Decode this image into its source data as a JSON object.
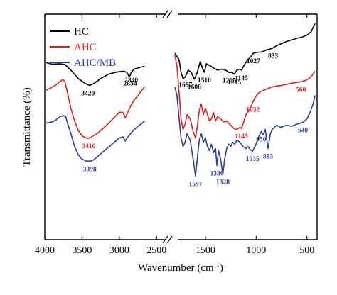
{
  "chart_data": {
    "type": "line",
    "xlabel": "Wavenumber (cm",
    "xlabel_sup": "-1",
    "xlabel_tail": ")",
    "ylabel": "Transmittance (%)",
    "x_reversed": true,
    "x_break": [
      2350,
      1800
    ],
    "xlim": [
      4000,
      400
    ],
    "x_ticks": [
      "4000",
      "3500",
      "3000",
      "2500",
      "1500",
      "1000",
      "500"
    ],
    "legend_position": "top-left",
    "series": [
      {
        "name": "HC",
        "color": "#000000",
        "points": [
          [
            3980,
            0.835
          ],
          [
            3900,
            0.828
          ],
          [
            3800,
            0.83
          ],
          [
            3730,
            0.826
          ],
          [
            3650,
            0.8
          ],
          [
            3550,
            0.76
          ],
          [
            3450,
            0.735
          ],
          [
            3400,
            0.728
          ],
          [
            3350,
            0.735
          ],
          [
            3250,
            0.76
          ],
          [
            3150,
            0.78
          ],
          [
            3050,
            0.79
          ],
          [
            2950,
            0.795
          ],
          [
            2900,
            0.79
          ],
          [
            2870,
            0.77
          ],
          [
            2854,
            0.775
          ],
          [
            2840,
            0.79
          ],
          [
            2800,
            0.805
          ],
          [
            2750,
            0.81
          ],
          [
            2700,
            0.815
          ],
          [
            2660,
            0.818
          ],
          [
            1800,
            0.88
          ],
          [
            1760,
            0.85
          ],
          [
            1740,
            0.79
          ],
          [
            1720,
            0.76
          ],
          [
            1697,
            0.768
          ],
          [
            1670,
            0.8
          ],
          [
            1640,
            0.79
          ],
          [
            1608,
            0.757
          ],
          [
            1580,
            0.79
          ],
          [
            1550,
            0.84
          ],
          [
            1530,
            0.81
          ],
          [
            1510,
            0.79
          ],
          [
            1490,
            0.83
          ],
          [
            1450,
            0.82
          ],
          [
            1420,
            0.81
          ],
          [
            1380,
            0.8
          ],
          [
            1340,
            0.805
          ],
          [
            1300,
            0.8
          ],
          [
            1265,
            0.788
          ],
          [
            1240,
            0.79
          ],
          [
            1215,
            0.78
          ],
          [
            1190,
            0.8
          ],
          [
            1160,
            0.805
          ],
          [
            1145,
            0.8
          ],
          [
            1110,
            0.83
          ],
          [
            1080,
            0.85
          ],
          [
            1050,
            0.865
          ],
          [
            1027,
            0.88
          ],
          [
            980,
            0.885
          ],
          [
            950,
            0.885
          ],
          [
            900,
            0.895
          ],
          [
            860,
            0.9
          ],
          [
            833,
            0.905
          ],
          [
            800,
            0.915
          ],
          [
            750,
            0.925
          ],
          [
            700,
            0.935
          ],
          [
            650,
            0.942
          ],
          [
            600,
            0.95
          ],
          [
            550,
            0.955
          ],
          [
            500,
            0.965
          ],
          [
            460,
            0.98
          ],
          [
            420,
            1.02
          ]
        ]
      },
      {
        "name": "AHC",
        "color": "#e02020",
        "points": [
          [
            3980,
            0.705
          ],
          [
            3900,
            0.72
          ],
          [
            3850,
            0.73
          ],
          [
            3800,
            0.745
          ],
          [
            3760,
            0.755
          ],
          [
            3730,
            0.745
          ],
          [
            3700,
            0.7
          ],
          [
            3650,
            0.62
          ],
          [
            3600,
            0.56
          ],
          [
            3550,
            0.515
          ],
          [
            3500,
            0.49
          ],
          [
            3450,
            0.48
          ],
          [
            3410,
            0.478
          ],
          [
            3370,
            0.485
          ],
          [
            3300,
            0.5
          ],
          [
            3200,
            0.53
          ],
          [
            3100,
            0.565
          ],
          [
            3000,
            0.6
          ],
          [
            2950,
            0.6
          ],
          [
            2920,
            0.575
          ],
          [
            2900,
            0.59
          ],
          [
            2850,
            0.63
          ],
          [
            2800,
            0.66
          ],
          [
            2750,
            0.68
          ],
          [
            2700,
            0.705
          ],
          [
            2660,
            0.72
          ],
          [
            1800,
            0.87
          ],
          [
            1780,
            0.82
          ],
          [
            1760,
            0.7
          ],
          [
            1740,
            0.57
          ],
          [
            1720,
            0.52
          ],
          [
            1700,
            0.545
          ],
          [
            1680,
            0.59
          ],
          [
            1650,
            0.57
          ],
          [
            1620,
            0.51
          ],
          [
            1597,
            0.48
          ],
          [
            1580,
            0.53
          ],
          [
            1560,
            0.61
          ],
          [
            1540,
            0.64
          ],
          [
            1520,
            0.59
          ],
          [
            1500,
            0.62
          ],
          [
            1480,
            0.59
          ],
          [
            1460,
            0.56
          ],
          [
            1440,
            0.57
          ],
          [
            1420,
            0.6
          ],
          [
            1400,
            0.56
          ],
          [
            1380,
            0.58
          ],
          [
            1350,
            0.57
          ],
          [
            1320,
            0.555
          ],
          [
            1290,
            0.56
          ],
          [
            1250,
            0.54
          ],
          [
            1220,
            0.525
          ],
          [
            1190,
            0.52
          ],
          [
            1160,
            0.53
          ],
          [
            1145,
            0.525
          ],
          [
            1120,
            0.56
          ],
          [
            1100,
            0.59
          ],
          [
            1070,
            0.61
          ],
          [
            1050,
            0.63
          ],
          [
            1032,
            0.65
          ],
          [
            1010,
            0.67
          ],
          [
            980,
            0.69
          ],
          [
            950,
            0.7
          ],
          [
            900,
            0.71
          ],
          [
            850,
            0.72
          ],
          [
            800,
            0.725
          ],
          [
            750,
            0.728
          ],
          [
            700,
            0.733
          ],
          [
            650,
            0.738
          ],
          [
            600,
            0.742
          ],
          [
            560,
            0.745
          ],
          [
            520,
            0.75
          ],
          [
            480,
            0.76
          ],
          [
            450,
            0.775
          ],
          [
            420,
            0.795
          ]
        ]
      },
      {
        "name": "AHC/MB",
        "color": "#2c3e9c",
        "points": [
          [
            3980,
            0.55
          ],
          [
            3900,
            0.555
          ],
          [
            3850,
            0.565
          ],
          [
            3800,
            0.58
          ],
          [
            3750,
            0.585
          ],
          [
            3720,
            0.58
          ],
          [
            3700,
            0.555
          ],
          [
            3650,
            0.5
          ],
          [
            3600,
            0.44
          ],
          [
            3550,
            0.4
          ],
          [
            3500,
            0.38
          ],
          [
            3450,
            0.372
          ],
          [
            3398,
            0.37
          ],
          [
            3350,
            0.375
          ],
          [
            3300,
            0.39
          ],
          [
            3200,
            0.42
          ],
          [
            3100,
            0.45
          ],
          [
            3000,
            0.48
          ],
          [
            2950,
            0.485
          ],
          [
            2920,
            0.465
          ],
          [
            2900,
            0.478
          ],
          [
            2850,
            0.5
          ],
          [
            2800,
            0.52
          ],
          [
            2750,
            0.535
          ],
          [
            2700,
            0.548
          ],
          [
            2660,
            0.56
          ],
          [
            1800,
            0.72
          ],
          [
            1780,
            0.68
          ],
          [
            1760,
            0.58
          ],
          [
            1740,
            0.48
          ],
          [
            1720,
            0.44
          ],
          [
            1700,
            0.46
          ],
          [
            1680,
            0.5
          ],
          [
            1650,
            0.47
          ],
          [
            1620,
            0.38
          ],
          [
            1597,
            0.3
          ],
          [
            1580,
            0.38
          ],
          [
            1560,
            0.47
          ],
          [
            1540,
            0.5
          ],
          [
            1520,
            0.46
          ],
          [
            1500,
            0.48
          ],
          [
            1480,
            0.44
          ],
          [
            1460,
            0.42
          ],
          [
            1440,
            0.45
          ],
          [
            1420,
            0.41
          ],
          [
            1400,
            0.43
          ],
          [
            1386,
            0.35
          ],
          [
            1370,
            0.42
          ],
          [
            1350,
            0.38
          ],
          [
            1328,
            0.31
          ],
          [
            1310,
            0.38
          ],
          [
            1290,
            0.43
          ],
          [
            1270,
            0.45
          ],
          [
            1250,
            0.44
          ],
          [
            1230,
            0.46
          ],
          [
            1210,
            0.45
          ],
          [
            1190,
            0.47
          ],
          [
            1160,
            0.46
          ],
          [
            1130,
            0.44
          ],
          [
            1100,
            0.43
          ],
          [
            1080,
            0.44
          ],
          [
            1060,
            0.425
          ],
          [
            1035,
            0.418
          ],
          [
            1010,
            0.44
          ],
          [
            980,
            0.48
          ],
          [
            950,
            0.51
          ],
          [
            930,
            0.495
          ],
          [
            910,
            0.52
          ],
          [
            883,
            0.43
          ],
          [
            860,
            0.5
          ],
          [
            840,
            0.52
          ],
          [
            800,
            0.54
          ],
          [
            760,
            0.53
          ],
          [
            700,
            0.54
          ],
          [
            650,
            0.535
          ],
          [
            600,
            0.545
          ],
          [
            560,
            0.55
          ],
          [
            540,
            0.553
          ],
          [
            500,
            0.57
          ],
          [
            470,
            0.6
          ],
          [
            440,
            0.64
          ],
          [
            420,
            0.68
          ]
        ]
      }
    ],
    "annotations": [
      {
        "text": "3420",
        "color": "#000000",
        "x": 3420,
        "y": 0.728
      },
      {
        "text": "2854",
        "color": "#000000",
        "x": 2854,
        "y": 0.775
      },
      {
        "text": "2840",
        "color": "#000000",
        "x": 2840,
        "y": 0.79
      },
      {
        "text": "1697",
        "color": "#000000",
        "x": 1697,
        "y": 0.768
      },
      {
        "text": "1608",
        "color": "#000000",
        "x": 1608,
        "y": 0.757
      },
      {
        "text": "1510",
        "color": "#000000",
        "x": 1510,
        "y": 0.79
      },
      {
        "text": "1265",
        "color": "#000000",
        "x": 1265,
        "y": 0.788
      },
      {
        "text": "1215",
        "color": "#000000",
        "x": 1215,
        "y": 0.78
      },
      {
        "text": "1145",
        "color": "#000000",
        "x": 1145,
        "y": 0.8
      },
      {
        "text": "1027",
        "color": "#000000",
        "x": 1027,
        "y": 0.88
      },
      {
        "text": "833",
        "color": "#000000",
        "x": 833,
        "y": 0.905
      },
      {
        "text": "3410",
        "color": "#e02020",
        "x": 3410,
        "y": 0.478
      },
      {
        "text": "1032",
        "color": "#e02020",
        "x": 1032,
        "y": 0.65
      },
      {
        "text": "1145",
        "color": "#e02020",
        "x": 1145,
        "y": 0.525
      },
      {
        "text": "560",
        "color": "#e02020",
        "x": 560,
        "y": 0.745
      },
      {
        "text": "3398",
        "color": "#2c3e9c",
        "x": 3398,
        "y": 0.37
      },
      {
        "text": "1597",
        "color": "#2c3e9c",
        "x": 1597,
        "y": 0.3
      },
      {
        "text": "1386",
        "color": "#2c3e9c",
        "x": 1386,
        "y": 0.35
      },
      {
        "text": "1328",
        "color": "#2c3e9c",
        "x": 1328,
        "y": 0.31
      },
      {
        "text": "1035",
        "color": "#2c3e9c",
        "x": 1035,
        "y": 0.418
      },
      {
        "text": "950",
        "color": "#2c3e9c",
        "x": 950,
        "y": 0.51
      },
      {
        "text": "883",
        "color": "#2c3e9c",
        "x": 883,
        "y": 0.43
      },
      {
        "text": "540",
        "color": "#2c3e9c",
        "x": 540,
        "y": 0.553
      }
    ]
  }
}
